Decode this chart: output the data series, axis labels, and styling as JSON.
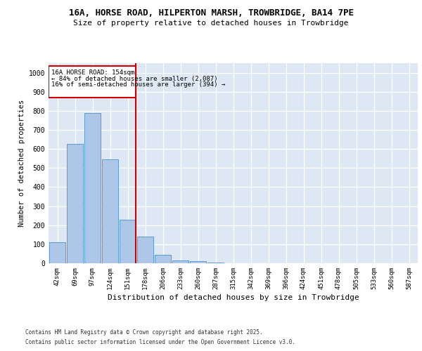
{
  "title_line1": "16A, HORSE ROAD, HILPERTON MARSH, TROWBRIDGE, BA14 7PE",
  "title_line2": "Size of property relative to detached houses in Trowbridge",
  "xlabel": "Distribution of detached houses by size in Trowbridge",
  "ylabel": "Number of detached properties",
  "categories": [
    "42sqm",
    "69sqm",
    "97sqm",
    "124sqm",
    "151sqm",
    "178sqm",
    "206sqm",
    "233sqm",
    "260sqm",
    "287sqm",
    "315sqm",
    "342sqm",
    "369sqm",
    "396sqm",
    "424sqm",
    "451sqm",
    "478sqm",
    "505sqm",
    "533sqm",
    "560sqm",
    "587sqm"
  ],
  "values": [
    110,
    625,
    790,
    545,
    230,
    140,
    45,
    15,
    10,
    5,
    0,
    0,
    0,
    0,
    0,
    0,
    0,
    0,
    0,
    0,
    0
  ],
  "bar_color": "#aec6e8",
  "bar_edge_color": "#5b9bd5",
  "background_color": "#dde8f4",
  "grid_color": "#ffffff",
  "red_line_index": 4,
  "red_line_color": "#cc0000",
  "annotation_line1": "16A HORSE ROAD: 154sqm",
  "annotation_line2": "← 84% of detached houses are smaller (2,087)",
  "annotation_line3": "16% of semi-detached houses are larger (394) →",
  "annotation_box_color": "#cc0000",
  "ylim": [
    0,
    1050
  ],
  "yticks": [
    0,
    100,
    200,
    300,
    400,
    500,
    600,
    700,
    800,
    900,
    1000
  ],
  "footer_line1": "Contains HM Land Registry data © Crown copyright and database right 2025.",
  "footer_line2": "Contains public sector information licensed under the Open Government Licence v3.0.",
  "fig_bg": "#ffffff"
}
